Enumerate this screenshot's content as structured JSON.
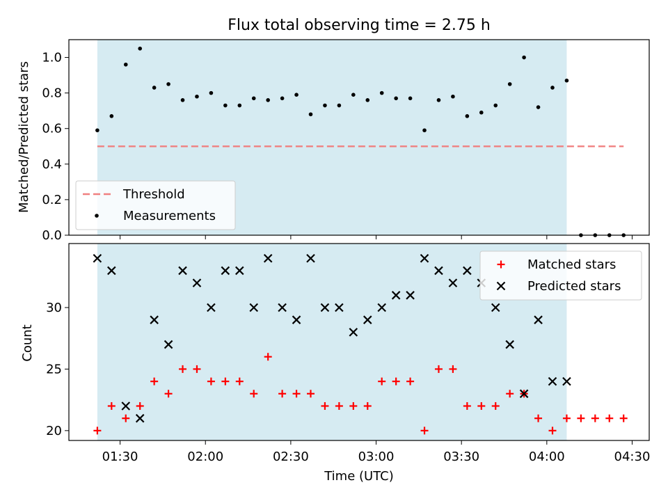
{
  "chart_data": {
    "title": "Flux total observing time = 2.75 h",
    "xlabel": "Time (UTC)",
    "x_unit": "time (UTC)",
    "x_range": [
      "01:12",
      "04:36"
    ],
    "x_ticks": [
      "01:30",
      "02:00",
      "02:30",
      "03:00",
      "03:30",
      "04:00",
      "04:30"
    ],
    "observing_window": {
      "start": "01:22",
      "end": "04:07",
      "color": "#add8e6"
    },
    "panels": [
      {
        "type": "scatter",
        "ylabel": "Matched/Predicted stars",
        "ylim": [
          0,
          1.1
        ],
        "y_ticks": [
          "0.0",
          "0.2",
          "0.4",
          "0.6",
          "0.8",
          "1.0"
        ],
        "legend_position": "lower-left",
        "threshold": {
          "name": "Threshold",
          "y": 0.5,
          "x_start": "01:22",
          "x_end": "04:27",
          "color": "#f08080"
        },
        "series": [
          {
            "name": "Measurements",
            "marker": "dot",
            "color": "#000000",
            "points": [
              [
                "01:22",
                0.59
              ],
              [
                "01:27",
                0.67
              ],
              [
                "01:32",
                0.96
              ],
              [
                "01:37",
                1.05
              ],
              [
                "01:42",
                0.83
              ],
              [
                "01:47",
                0.85
              ],
              [
                "01:52",
                0.76
              ],
              [
                "01:57",
                0.78
              ],
              [
                "02:02",
                0.8
              ],
              [
                "02:07",
                0.73
              ],
              [
                "02:12",
                0.73
              ],
              [
                "02:17",
                0.77
              ],
              [
                "02:22",
                0.76
              ],
              [
                "02:27",
                0.77
              ],
              [
                "02:32",
                0.79
              ],
              [
                "02:37",
                0.68
              ],
              [
                "02:42",
                0.73
              ],
              [
                "02:47",
                0.73
              ],
              [
                "02:52",
                0.79
              ],
              [
                "02:57",
                0.76
              ],
              [
                "03:02",
                0.8
              ],
              [
                "03:07",
                0.77
              ],
              [
                "03:12",
                0.77
              ],
              [
                "03:17",
                0.59
              ],
              [
                "03:22",
                0.76
              ],
              [
                "03:27",
                0.78
              ],
              [
                "03:32",
                0.67
              ],
              [
                "03:37",
                0.69
              ],
              [
                "03:42",
                0.73
              ],
              [
                "03:47",
                0.85
              ],
              [
                "03:52",
                1.0
              ],
              [
                "03:57",
                0.72
              ],
              [
                "04:02",
                0.83
              ],
              [
                "04:07",
                0.87
              ],
              [
                "04:12",
                0.0
              ],
              [
                "04:17",
                0.0
              ],
              [
                "04:22",
                0.0
              ],
              [
                "04:27",
                0.0
              ]
            ]
          }
        ]
      },
      {
        "type": "scatter",
        "ylabel": "Count",
        "ylim": [
          19.2,
          35.2
        ],
        "y_ticks": [
          "20",
          "25",
          "30"
        ],
        "legend_position": "top-right",
        "series": [
          {
            "name": "Matched stars",
            "marker": "plus",
            "color": "#ff0000",
            "points": [
              [
                "01:22",
                20
              ],
              [
                "01:27",
                22
              ],
              [
                "01:32",
                21
              ],
              [
                "01:37",
                22
              ],
              [
                "01:42",
                24
              ],
              [
                "01:47",
                23
              ],
              [
                "01:52",
                25
              ],
              [
                "01:57",
                25
              ],
              [
                "02:02",
                24
              ],
              [
                "02:07",
                24
              ],
              [
                "02:12",
                24
              ],
              [
                "02:17",
                23
              ],
              [
                "02:22",
                26
              ],
              [
                "02:27",
                23
              ],
              [
                "02:32",
                23
              ],
              [
                "02:37",
                23
              ],
              [
                "02:42",
                22
              ],
              [
                "02:47",
                22
              ],
              [
                "02:52",
                22
              ],
              [
                "02:57",
                22
              ],
              [
                "03:02",
                24
              ],
              [
                "03:07",
                24
              ],
              [
                "03:12",
                24
              ],
              [
                "03:17",
                20
              ],
              [
                "03:22",
                25
              ],
              [
                "03:27",
                25
              ],
              [
                "03:32",
                22
              ],
              [
                "03:37",
                22
              ],
              [
                "03:42",
                22
              ],
              [
                "03:47",
                23
              ],
              [
                "03:52",
                23
              ],
              [
                "03:57",
                21
              ],
              [
                "04:02",
                20
              ],
              [
                "04:07",
                21
              ],
              [
                "04:12",
                21
              ],
              [
                "04:17",
                21
              ],
              [
                "04:22",
                21
              ],
              [
                "04:27",
                21
              ]
            ]
          },
          {
            "name": "Predicted stars",
            "marker": "x",
            "color": "#000000",
            "points": [
              [
                "01:22",
                34
              ],
              [
                "01:27",
                33
              ],
              [
                "01:32",
                22
              ],
              [
                "01:37",
                21
              ],
              [
                "01:42",
                29
              ],
              [
                "01:47",
                27
              ],
              [
                "01:52",
                33
              ],
              [
                "01:57",
                32
              ],
              [
                "02:02",
                30
              ],
              [
                "02:07",
                33
              ],
              [
                "02:12",
                33
              ],
              [
                "02:17",
                30
              ],
              [
                "02:22",
                34
              ],
              [
                "02:27",
                30
              ],
              [
                "02:32",
                29
              ],
              [
                "02:37",
                34
              ],
              [
                "02:42",
                30
              ],
              [
                "02:47",
                30
              ],
              [
                "02:52",
                28
              ],
              [
                "02:57",
                29
              ],
              [
                "03:02",
                30
              ],
              [
                "03:07",
                31
              ],
              [
                "03:12",
                31
              ],
              [
                "03:17",
                34
              ],
              [
                "03:22",
                33
              ],
              [
                "03:27",
                32
              ],
              [
                "03:32",
                33
              ],
              [
                "03:37",
                32
              ],
              [
                "03:42",
                30
              ],
              [
                "03:47",
                27
              ],
              [
                "03:52",
                23
              ],
              [
                "03:57",
                29
              ],
              [
                "04:02",
                24
              ],
              [
                "04:07",
                24
              ]
            ]
          }
        ]
      }
    ]
  }
}
